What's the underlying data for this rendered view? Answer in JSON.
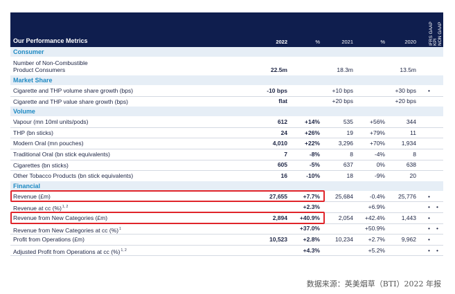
{
  "header": {
    "title": "Our Performance Metrics",
    "columns": [
      "2022",
      "%",
      "2021",
      "%",
      "2020"
    ],
    "kpi": [
      "IFRS GAAP",
      "KPI"
    ],
    "nongaap": [
      "NON GAAP"
    ]
  },
  "sections": [
    {
      "title": "Consumer",
      "rows": [
        {
          "label": [
            "Number of Non-Combustible",
            "Product Consumers"
          ],
          "cells": [
            "22.5m",
            null,
            "18.3m",
            null,
            "13.5m",
            null,
            null
          ]
        }
      ]
    },
    {
      "title": "Market Share",
      "rows": [
        {
          "label": [
            "Cigarette and THP volume share growth (bps)"
          ],
          "cells": [
            "-10 bps",
            null,
            "+10 bps",
            null,
            "+30 bps",
            "•",
            null
          ]
        },
        {
          "label": [
            "Cigarette and THP value share growth (bps)"
          ],
          "cells": [
            "flat",
            null,
            "+20 bps",
            null,
            "+20 bps",
            null,
            null
          ]
        }
      ]
    },
    {
      "title": "Volume",
      "rows": [
        {
          "label": [
            "Vapour (mn 10ml units/pods)"
          ],
          "cells": [
            "612",
            "+14%",
            "535",
            "+56%",
            "344",
            null,
            null
          ]
        },
        {
          "label": [
            "THP (bn sticks)"
          ],
          "cells": [
            "24",
            "+26%",
            "19",
            "+79%",
            "11",
            null,
            null
          ]
        },
        {
          "label": [
            "Modern Oral (mn pouches)"
          ],
          "cells": [
            "4,010",
            "+22%",
            "3,296",
            "+70%",
            "1,934",
            null,
            null
          ]
        },
        {
          "label": [
            "Traditional Oral (bn stick equivalents)"
          ],
          "cells": [
            "7",
            "-8%",
            "8",
            "-4%",
            "8",
            null,
            null
          ]
        },
        {
          "label": [
            "Cigarettes (bn sticks)"
          ],
          "cells": [
            "605",
            "-5%",
            "637",
            "0%",
            "638",
            null,
            null
          ]
        },
        {
          "label": [
            "Other Tobacco Products (bn stick equivalents)"
          ],
          "cells": [
            "16",
            "-10%",
            "18",
            "-9%",
            "20",
            null,
            null
          ]
        }
      ]
    },
    {
      "title": "Financial",
      "rows": [
        {
          "label": [
            "Revenue (£m)"
          ],
          "cells": [
            "27,655",
            "+7.7%",
            "25,684",
            "-0.4%",
            "25,776",
            "•",
            null
          ],
          "highlight": true
        },
        {
          "label": [
            "Revenue at cc (%)"
          ],
          "sup": "1, 2",
          "cells": [
            null,
            "+2.3%",
            null,
            "+6.9%",
            null,
            "•",
            "•"
          ]
        },
        {
          "label": [
            "Revenue from New Categories (£m)"
          ],
          "cells": [
            "2,894",
            "+40.9%",
            "2,054",
            "+42.4%",
            "1,443",
            "•",
            null
          ],
          "highlight": true
        },
        {
          "label": [
            "Revenue from New Categories at cc (%)"
          ],
          "sup": "1",
          "cells": [
            null,
            "+37.0%",
            null,
            "+50.9%",
            null,
            "•",
            "•"
          ]
        },
        {
          "label": [
            "Profit from Operations (£m)"
          ],
          "cells": [
            "10,523",
            "+2.8%",
            "10,234",
            "+2.7%",
            "9,962",
            "•",
            null
          ]
        },
        {
          "label": [
            "Adjusted Profit from Operations at cc (%)"
          ],
          "sup": "1, 2",
          "cells": [
            null,
            "+4.3%",
            null,
            "+5.2%",
            null,
            "•",
            "•"
          ]
        }
      ]
    }
  ],
  "footer": "数据来源：英美烟草（BTI）2022 年报"
}
